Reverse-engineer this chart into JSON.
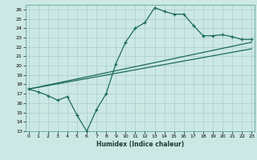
{
  "xlabel": "Humidex (Indice chaleur)",
  "bg_color": "#cce8e4",
  "grid_color": "#aaccca",
  "line_color": "#1a6b5a",
  "ylim": [
    13,
    26.5
  ],
  "xlim": [
    -0.3,
    23.3
  ],
  "yticks": [
    13,
    14,
    15,
    16,
    17,
    18,
    19,
    20,
    21,
    22,
    23,
    24,
    25,
    26
  ],
  "xticks": [
    0,
    1,
    2,
    3,
    4,
    5,
    6,
    7,
    8,
    9,
    10,
    11,
    12,
    13,
    14,
    15,
    16,
    17,
    18,
    19,
    20,
    21,
    22,
    23
  ],
  "line1_x": [
    0,
    1,
    2,
    3,
    4,
    5,
    6,
    7,
    8,
    9,
    10,
    11,
    12,
    13,
    14,
    15,
    16,
    17,
    18,
    19,
    20,
    21,
    22,
    23
  ],
  "line1_y": [
    17.5,
    17.2,
    16.8,
    16.3,
    16.7,
    14.7,
    13.0,
    15.3,
    17.0,
    20.2,
    22.5,
    24.0,
    24.6,
    26.2,
    25.8,
    25.5,
    25.5,
    24.3,
    23.2,
    23.2,
    23.3,
    23.1,
    22.8,
    22.8
  ],
  "line2_x": [
    0,
    23
  ],
  "line2_y": [
    17.5,
    22.5
  ],
  "line3_x": [
    0,
    23
  ],
  "line3_y": [
    17.5,
    21.8
  ]
}
